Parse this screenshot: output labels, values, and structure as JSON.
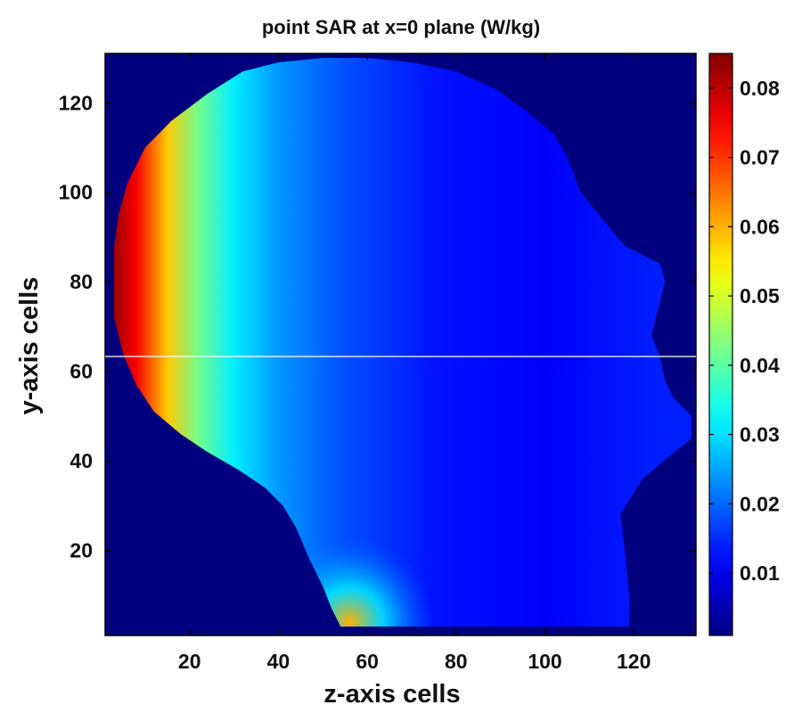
{
  "chart_data": {
    "type": "heatmap",
    "title": "point SAR at x=0 plane (W/kg)",
    "xlabel": "z-axis cells",
    "ylabel": "y-axis cells",
    "xlim": [
      1,
      134
    ],
    "ylim": [
      1,
      131
    ],
    "xticks": [
      20,
      40,
      60,
      80,
      100,
      120
    ],
    "yticks": [
      20,
      40,
      60,
      80,
      100,
      120
    ],
    "colorbar": {
      "colormap": "jet",
      "range": [
        0.001,
        0.085
      ],
      "ticks": [
        0.01,
        0.02,
        0.03,
        0.04,
        0.05,
        0.06,
        0.07,
        0.08
      ]
    },
    "background_value": 0,
    "background_color": "#00007f",
    "head_outline_z_y": [
      [
        54,
        3
      ],
      [
        119,
        3
      ],
      [
        119,
        10
      ],
      [
        118,
        20
      ],
      [
        117,
        28
      ],
      [
        122,
        36
      ],
      [
        128,
        41
      ],
      [
        133,
        45
      ],
      [
        133,
        50
      ],
      [
        129,
        54
      ],
      [
        127,
        58
      ],
      [
        126,
        63
      ],
      [
        124,
        68
      ],
      [
        125,
        72
      ],
      [
        126,
        76
      ],
      [
        127,
        80
      ],
      [
        126,
        84
      ],
      [
        122,
        86
      ],
      [
        118,
        88
      ],
      [
        113,
        94
      ],
      [
        108,
        100
      ],
      [
        105,
        108
      ],
      [
        102,
        113
      ],
      [
        96,
        118
      ],
      [
        89,
        123
      ],
      [
        80,
        127
      ],
      [
        70,
        129
      ],
      [
        60,
        130
      ],
      [
        50,
        130
      ],
      [
        40,
        129
      ],
      [
        32,
        127
      ],
      [
        24,
        122
      ],
      [
        16,
        116
      ],
      [
        10,
        110
      ],
      [
        6,
        102
      ],
      [
        4,
        95
      ],
      [
        3,
        88
      ],
      [
        3,
        80
      ],
      [
        3,
        72
      ],
      [
        5,
        64
      ],
      [
        8,
        57
      ],
      [
        12,
        51
      ],
      [
        18,
        46
      ],
      [
        24,
        42
      ],
      [
        31,
        38
      ],
      [
        37,
        34
      ],
      [
        41,
        30
      ],
      [
        44,
        25
      ],
      [
        47,
        18
      ],
      [
        50,
        12
      ],
      [
        52,
        7
      ]
    ],
    "sar_profile": {
      "description_z_cells": [
        3,
        8,
        15,
        22,
        30,
        40,
        55,
        75,
        100,
        125
      ],
      "values_w_per_kg": [
        0.083,
        0.075,
        0.058,
        0.042,
        0.031,
        0.024,
        0.018,
        0.013,
        0.011,
        0.014
      ]
    },
    "hot_spot_neck": {
      "z": 56,
      "y": 4,
      "value": 0.06
    }
  }
}
